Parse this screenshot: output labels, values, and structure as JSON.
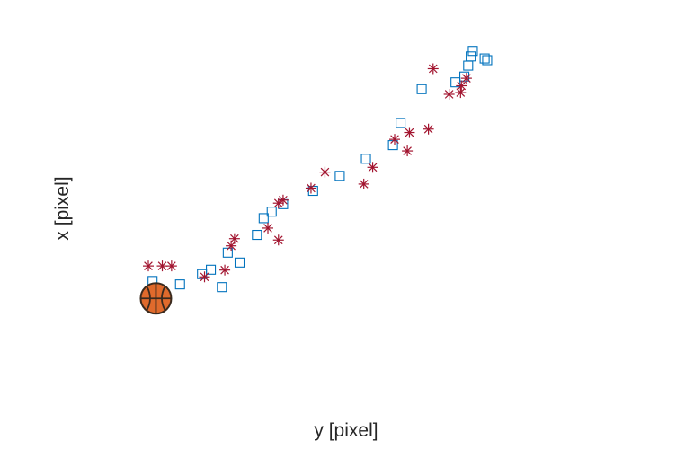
{
  "chart_data": {
    "type": "scatter",
    "title": "",
    "xlabel": "y [pixel]",
    "ylabel": "x [pixel]",
    "xlim": [
      0,
      100
    ],
    "ylim": [
      0,
      100
    ],
    "grid": false,
    "axes_visible": false,
    "series": [
      {
        "marker": "square",
        "color": "#0072BD",
        "points": [
          [
            1.0,
            28.2
          ],
          [
            7.5,
            27.2
          ],
          [
            12.7,
            30.2
          ],
          [
            14.8,
            31.5
          ],
          [
            17.4,
            26.4
          ],
          [
            18.8,
            36.5
          ],
          [
            21.6,
            33.6
          ],
          [
            25.7,
            41.7
          ],
          [
            27.3,
            46.6
          ],
          [
            29.2,
            48.5
          ],
          [
            31.9,
            50.7
          ],
          [
            39.0,
            54.6
          ],
          [
            45.3,
            59.0
          ],
          [
            51.5,
            64.0
          ],
          [
            57.9,
            68.0
          ],
          [
            59.7,
            74.5
          ],
          [
            64.7,
            84.4
          ],
          [
            72.7,
            86.4
          ],
          [
            74.8,
            88.1
          ],
          [
            75.7,
            91.3
          ],
          [
            76.3,
            94.0
          ],
          [
            76.8,
            95.6
          ],
          [
            79.6,
            93.4
          ],
          [
            80.2,
            92.9
          ]
        ]
      },
      {
        "marker": "asterisk",
        "color": "#A2142F",
        "points": [
          [
            0.0,
            32.6
          ],
          [
            3.3,
            32.6
          ],
          [
            5.5,
            32.6
          ],
          [
            13.3,
            29.4
          ],
          [
            18.1,
            31.4
          ],
          [
            19.6,
            38.5
          ],
          [
            20.4,
            40.6
          ],
          [
            28.3,
            43.7
          ],
          [
            30.8,
            40.2
          ],
          [
            30.8,
            51.0
          ],
          [
            31.9,
            51.9
          ],
          [
            38.5,
            55.4
          ],
          [
            41.8,
            60.1
          ],
          [
            51.0,
            56.6
          ],
          [
            53.1,
            61.5
          ],
          [
            58.3,
            69.7
          ],
          [
            61.3,
            66.3
          ],
          [
            61.8,
            71.7
          ],
          [
            66.3,
            72.7
          ],
          [
            67.4,
            90.4
          ],
          [
            71.2,
            82.9
          ],
          [
            73.9,
            83.4
          ],
          [
            74.1,
            85.4
          ],
          [
            75.3,
            87.6
          ]
        ]
      }
    ],
    "annotations": [
      {
        "type": "basketball-icon",
        "x": 1.8,
        "y": 23.1
      }
    ]
  }
}
